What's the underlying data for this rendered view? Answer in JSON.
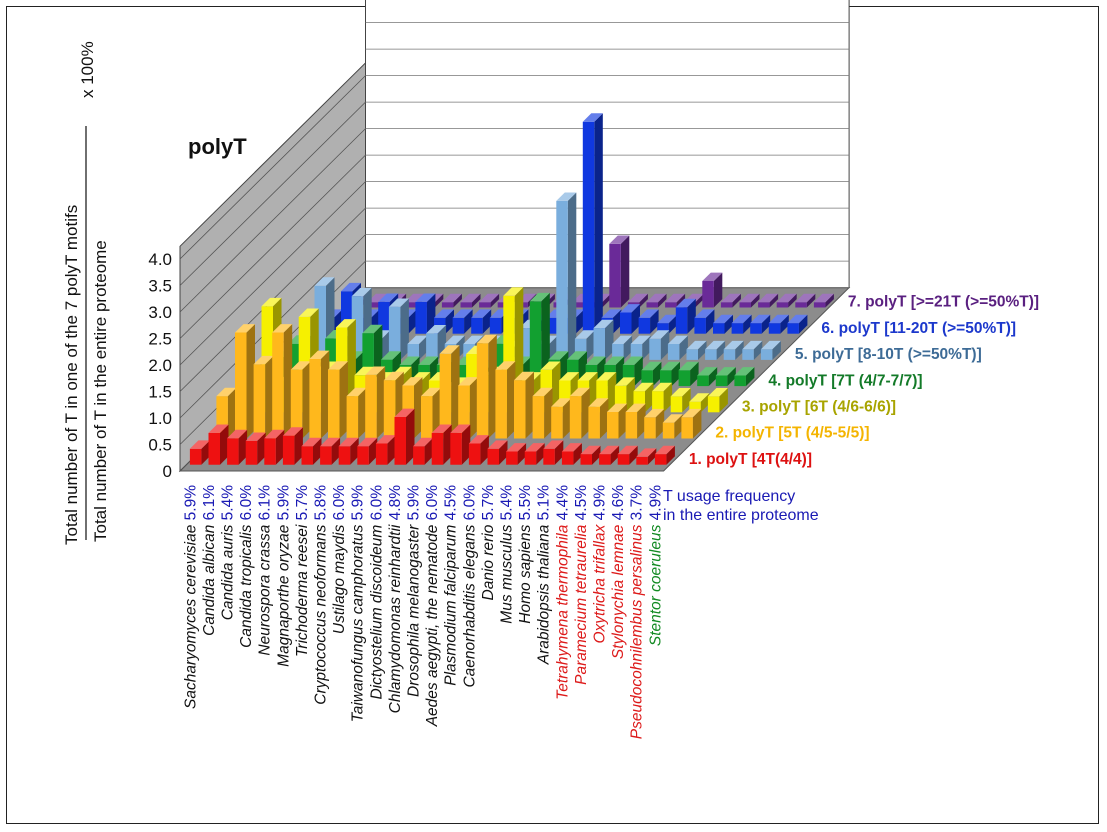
{
  "chart_data": {
    "type": "bar",
    "title": "polyT",
    "ylabel_numerator": "Total number of T in one of the 7 polyT motifs",
    "ylabel_denominator": "Total number of T in the entire proteome",
    "ylabel_multiplier": "x 100%",
    "yticks": [
      "0",
      "0.5",
      "1.0",
      "1.5",
      "2.0",
      "2.5",
      "3.0",
      "3.5",
      "4.0"
    ],
    "ylim": [
      0,
      4.0
    ],
    "frequency_legend": [
      "T usage frequency",
      "in the entire proteome"
    ],
    "categories": [
      {
        "name": "Sacharyomyces cerevisiae",
        "freq": "5.9%",
        "group": "other"
      },
      {
        "name": "Candida albican",
        "freq": "6.1%",
        "group": "other"
      },
      {
        "name": "Candida auris",
        "freq": "5.4%",
        "group": "other"
      },
      {
        "name": "Candida tropicalis",
        "freq": "6.0%",
        "group": "other"
      },
      {
        "name": "Neurospora crassa",
        "freq": "6.1%",
        "group": "other"
      },
      {
        "name": "Magnaporthe oryzae",
        "freq": "5.9%",
        "group": "other"
      },
      {
        "name": "Trichoderma reesei",
        "freq": "5.7%",
        "group": "other"
      },
      {
        "name": "Cryptococcus neoformans",
        "freq": "5.8%",
        "group": "other"
      },
      {
        "name": "Ustilago maydis",
        "freq": "6.0%",
        "group": "other"
      },
      {
        "name": "Taiwanofungus camphoratus",
        "freq": "5.9%",
        "group": "other"
      },
      {
        "name": "Dictyostelium discoideum",
        "freq": "6.0%",
        "group": "other"
      },
      {
        "name": "Chlamydomonas reinhardtii",
        "freq": "4.8%",
        "group": "other"
      },
      {
        "name": "Drosophila melanogaster",
        "freq": "5.9%",
        "group": "other"
      },
      {
        "name": "Aedes aegypti, the nematode",
        "freq": "6.0%",
        "group": "other"
      },
      {
        "name": "Plasmodium falciparum",
        "freq": "4.5%",
        "group": "other"
      },
      {
        "name": "Caenorhabditis elegans",
        "freq": "6.0%",
        "group": "other"
      },
      {
        "name": "Danio rerio",
        "freq": "5.7%",
        "group": "other"
      },
      {
        "name": "Mus musculus",
        "freq": "5.4%",
        "group": "other"
      },
      {
        "name": "Homo sapiens",
        "freq": "5.5%",
        "group": "other"
      },
      {
        "name": "Arabidopsis thaliana",
        "freq": "5.1%",
        "group": "other"
      },
      {
        "name": "Tetrahymena thermophila",
        "freq": "4.4%",
        "group": "ciliate"
      },
      {
        "name": "Paramecium tetraurelia",
        "freq": "4.5%",
        "group": "ciliate"
      },
      {
        "name": "Oxytricha trifallax",
        "freq": "4.9%",
        "group": "ciliate"
      },
      {
        "name": "Stylonychia lemnae",
        "freq": "4.6%",
        "group": "ciliate"
      },
      {
        "name": "Pseudocohnilembus persalinus",
        "freq": "3.7%",
        "group": "ciliate"
      },
      {
        "name": "Stentor coeruleus",
        "freq": "4.9%",
        "group": "stentor"
      }
    ],
    "series": [
      {
        "name": "1. polyT [4T(4/4)]",
        "color": "#ee1111",
        "label_color": "#dd1111",
        "values": [
          0.3,
          0.6,
          0.5,
          0.45,
          0.5,
          0.55,
          0.35,
          0.35,
          0.35,
          0.35,
          0.4,
          0.9,
          0.35,
          0.6,
          0.6,
          0.4,
          0.3,
          0.25,
          0.25,
          0.3,
          0.25,
          0.2,
          0.2,
          0.2,
          0.15,
          0.2
        ]
      },
      {
        "name": "2. polyT [5T (4/5-5/5)]",
        "color": "#ffb81c",
        "label_color": "#f4b400",
        "values": [
          0.8,
          2.0,
          1.4,
          2.0,
          1.3,
          1.5,
          1.3,
          0.8,
          1.2,
          1.1,
          1.0,
          0.8,
          1.6,
          1.0,
          1.8,
          1.3,
          1.1,
          0.8,
          0.6,
          0.8,
          0.6,
          0.5,
          0.5,
          0.4,
          0.3,
          0.4
        ]
      },
      {
        "name": "3. polyT [6T (4/6-6/6)]",
        "color": "#f6f000",
        "label_color": "#a8a400",
        "values": [
          0.6,
          2.0,
          0.6,
          1.8,
          0.8,
          1.6,
          0.7,
          0.6,
          0.7,
          0.6,
          0.6,
          0.5,
          1.1,
          0.7,
          2.2,
          0.6,
          0.8,
          0.6,
          0.6,
          0.6,
          0.5,
          0.4,
          0.4,
          0.3,
          0.2,
          0.3
        ]
      },
      {
        "name": "4. polyT [7T (4/7-7/7)]",
        "color": "#12a030",
        "label_color": "#137a28",
        "values": [
          0.5,
          0.8,
          0.4,
          0.9,
          0.5,
          1.0,
          0.5,
          0.4,
          0.4,
          0.4,
          0.4,
          0.3,
          0.8,
          0.4,
          1.6,
          0.5,
          0.5,
          0.4,
          0.4,
          0.4,
          0.3,
          0.3,
          0.3,
          0.2,
          0.2,
          0.2
        ]
      },
      {
        "name": "5. polyT [8-10T (>=50%T)]",
        "color": "#7aaedd",
        "label_color": "#3d6b96",
        "values": [
          0.4,
          1.4,
          0.4,
          1.2,
          0.4,
          1.0,
          0.3,
          0.5,
          0.3,
          0.3,
          0.3,
          0.2,
          0.6,
          0.3,
          3.0,
          0.4,
          0.6,
          0.3,
          0.3,
          0.4,
          0.3,
          0.2,
          0.2,
          0.2,
          0.2,
          0.2
        ]
      },
      {
        "name": "6. polyT [11-20T (>=50%T)]",
        "color": "#1038e0",
        "label_color": "#1c38cc",
        "values": [
          0.3,
          0.8,
          0.3,
          0.6,
          0.3,
          0.6,
          0.3,
          0.3,
          0.3,
          0.3,
          0.3,
          0.2,
          0.3,
          0.3,
          4.0,
          0.3,
          0.4,
          0.3,
          0.2,
          0.5,
          0.3,
          0.2,
          0.2,
          0.2,
          0.2,
          0.2
        ]
      },
      {
        "name": "7. polyT [>=21T (>=50%T)]",
        "color": "#6a2a98",
        "label_color": "#5a2080",
        "values": [
          0.1,
          0.1,
          0.1,
          0.1,
          0.1,
          0.1,
          0.1,
          0.1,
          0.1,
          0.1,
          0.1,
          0.1,
          0.1,
          0.1,
          1.2,
          0.1,
          0.1,
          0.1,
          0.1,
          0.5,
          0.1,
          0.1,
          0.1,
          0.1,
          0.1,
          0.1
        ]
      }
    ],
    "group_colors": {
      "other": "#1a1ab4",
      "ciliate": "#dd1a1a",
      "stentor": "#128a22"
    }
  }
}
